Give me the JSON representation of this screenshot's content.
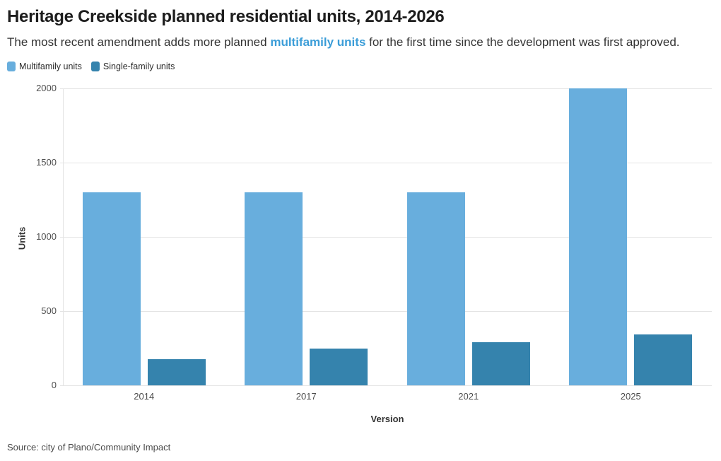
{
  "header": {
    "title": "Heritage Creekside planned residential units, 2014-2026",
    "subtitle_prefix": "The most recent amendment adds more planned ",
    "subtitle_highlight": "multifamily units",
    "subtitle_suffix": " for the first time since the development was first approved."
  },
  "legend": {
    "items": [
      {
        "label": "Multifamily units",
        "color": "#68aedd"
      },
      {
        "label": "Single-family units",
        "color": "#3583ad"
      }
    ]
  },
  "chart_data": {
    "type": "bar",
    "categories": [
      "2014",
      "2017",
      "2021",
      "2025"
    ],
    "series": [
      {
        "name": "Multifamily units",
        "color": "#68aedd",
        "values": [
          1300,
          1300,
          1300,
          2000
        ]
      },
      {
        "name": "Single-family units",
        "color": "#3583ad",
        "values": [
          175,
          250,
          290,
          345
        ]
      }
    ],
    "title": "Heritage Creekside planned residential units, 2014-2026",
    "xlabel": "Version",
    "ylabel": "Units",
    "ylim": [
      0,
      2000
    ],
    "yticks": [
      0,
      500,
      1000,
      1500,
      2000
    ],
    "grid": "horizontal",
    "legend_position": "top-left"
  },
  "footer": {
    "source": "Source: city of Plano/Community Impact"
  },
  "colors": {
    "multifamily": "#68aedd",
    "single_family": "#3583ad",
    "highlight_text": "#3b9dd8",
    "grid": "#e4e4e4",
    "axis_text": "#4d4d4d"
  }
}
